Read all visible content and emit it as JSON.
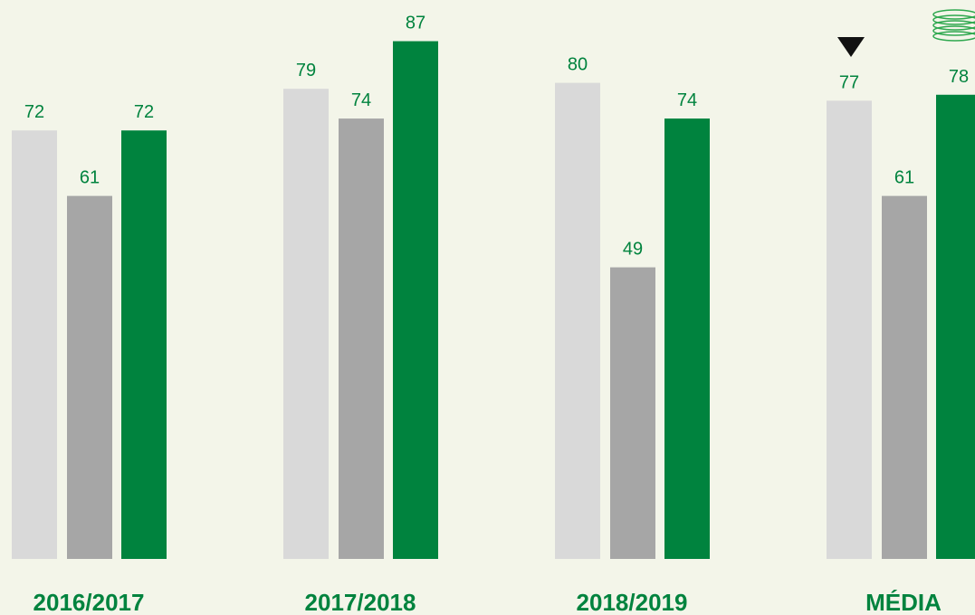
{
  "chart_data": {
    "type": "bar",
    "categories": [
      "2016/2017",
      "2017/2018",
      "2018/2019",
      "MÉDIA"
    ],
    "series": [
      {
        "color": "#d9d9d9",
        "values": [
          72,
          79,
          80,
          77
        ]
      },
      {
        "color": "#a6a6a6",
        "values": [
          61,
          74,
          49,
          61
        ]
      },
      {
        "color": "#00833e",
        "values": [
          72,
          87,
          74,
          78
        ]
      }
    ]
  }
}
